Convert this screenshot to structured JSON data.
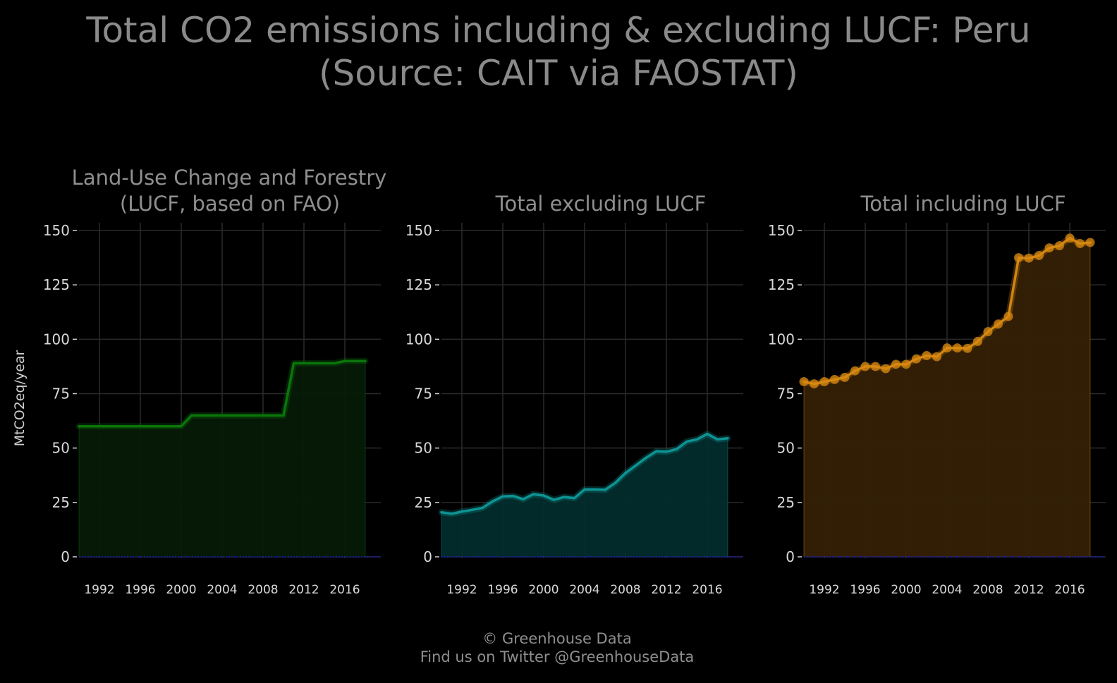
{
  "chart_data": {
    "type": "area",
    "title_line1": "Total CO2 emissions including & excluding LUCF: Peru",
    "title_line2": "(Source: CAIT via FAOSTAT)",
    "ylabel": "MtCO2eq/year",
    "caption_line1": "© Greenhouse Data",
    "caption_line2": "Find us on Twitter @GreenhouseData",
    "ylim": [
      0,
      150
    ],
    "yticks": [
      "0",
      "25",
      "50",
      "75",
      "100",
      "125",
      "150"
    ],
    "xlim": [
      1990,
      2018
    ],
    "xticks": [
      "1992",
      "1996",
      "2000",
      "2004",
      "2008",
      "2012",
      "2016"
    ],
    "grid": true,
    "colors": {
      "background": "#000000",
      "grid": "#2a2a2a",
      "baseline": "#1f1fd6"
    },
    "panels": [
      {
        "title_line1": "Land-Use Change and Forestry",
        "title_line2": "(LUCF, based on FAO)",
        "color": "#0b7a0b",
        "fill": "#061a06",
        "markers": false,
        "x": [
          1990,
          1991,
          1992,
          1993,
          1994,
          1995,
          1996,
          1997,
          1998,
          1999,
          2000,
          2001,
          2002,
          2003,
          2004,
          2005,
          2006,
          2007,
          2008,
          2009,
          2010,
          2011,
          2012,
          2013,
          2014,
          2015,
          2016,
          2017,
          2018
        ],
        "values": [
          60,
          60,
          60,
          60,
          60,
          60,
          60,
          60,
          60,
          60,
          60,
          65,
          65,
          65,
          65,
          65,
          65,
          65,
          65,
          65,
          65,
          89,
          89,
          89,
          89,
          89,
          90,
          90,
          90
        ]
      },
      {
        "title_line1": "",
        "title_line2": "Total excluding LUCF",
        "color": "#0e9a9a",
        "fill": "#022c2c",
        "markers": false,
        "x": [
          1990,
          1991,
          1992,
          1993,
          1994,
          1995,
          1996,
          1997,
          1998,
          1999,
          2000,
          2001,
          2002,
          2003,
          2004,
          2005,
          2006,
          2007,
          2008,
          2009,
          2010,
          2011,
          2012,
          2013,
          2014,
          2015,
          2016,
          2017,
          2018
        ],
        "values": [
          20.5,
          19.8,
          20.8,
          21.6,
          22.5,
          25.5,
          27.8,
          28.0,
          26.5,
          28.8,
          28.2,
          26.2,
          27.5,
          27.0,
          31.0,
          31.0,
          30.8,
          34.0,
          38.5,
          42.0,
          45.5,
          48.5,
          48.3,
          49.5,
          53.0,
          54.0,
          56.5,
          54.0,
          54.5
        ]
      },
      {
        "title_line1": "",
        "title_line2": "Total including LUCF",
        "color": "#d98a12",
        "fill": "#342005",
        "markers": true,
        "x": [
          1990,
          1991,
          1992,
          1993,
          1994,
          1995,
          1996,
          1997,
          1998,
          1999,
          2000,
          2001,
          2002,
          2003,
          2004,
          2005,
          2006,
          2007,
          2008,
          2009,
          2010,
          2011,
          2012,
          2013,
          2014,
          2015,
          2016,
          2017,
          2018
        ],
        "values": [
          80.5,
          79.5,
          80.5,
          81.5,
          82.5,
          85.5,
          87.5,
          87.5,
          86.5,
          88.5,
          88.5,
          91.0,
          92.5,
          92.0,
          96.0,
          96.0,
          95.8,
          99.0,
          103.5,
          107.0,
          110.5,
          137.5,
          137.3,
          138.5,
          142.0,
          143.0,
          146.5,
          144.0,
          144.5
        ]
      }
    ]
  }
}
